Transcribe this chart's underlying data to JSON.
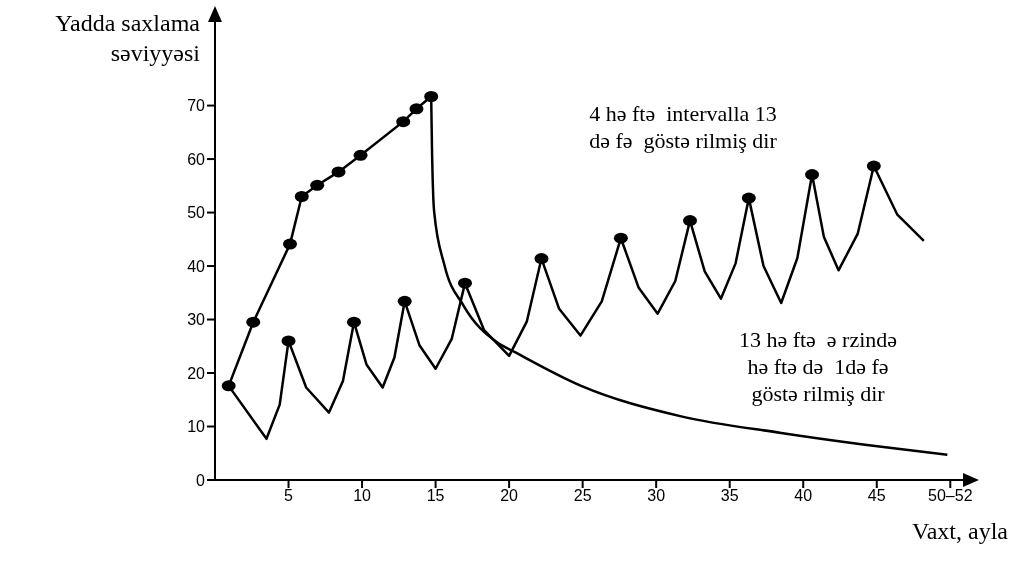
{
  "chart_data": {
    "type": "line",
    "xlabel": "Vaxt, ayla",
    "ylabel": "Yadda saxlama\nsəviyyəsi",
    "xlim": [
      0,
      51
    ],
    "ylim": [
      0,
      86
    ],
    "xticks": [
      5,
      10,
      15,
      20,
      25,
      30,
      35,
      40,
      45,
      {
        "value": 50,
        "label": "50–52"
      }
    ],
    "yticks": [
      0,
      10,
      20,
      30,
      40,
      50,
      60,
      70
    ],
    "annotations": [
      "4 hə ftə  intervalla 13\ndə fə  göstə rilmiş dir",
      "13 hə ftə  ə rzində\nhə ftə də  1də fə\ngöstə rilmiş dir"
    ],
    "series": [
      {
        "type": "line",
        "color": "#000000",
        "marker": "circle",
        "x": [
          0.93,
          2.6,
          5.1,
          5.9,
          6.95,
          8.4,
          9.9,
          12.8,
          13.7,
          14.7
        ],
        "values": [
          17.6,
          29.5,
          44.1,
          53.0,
          55.1,
          57.6,
          60.7,
          67.0,
          69.4,
          71.7
        ]
      },
      {
        "type": "line",
        "color": "#000000",
        "marker": "none",
        "x": [
          14.7,
          14.75,
          14.9,
          15.6,
          16.9,
          19.2,
          20.4,
          24.9,
          31.7,
          38.5,
          44.2,
          49.8
        ],
        "values": [
          71.7,
          62.8,
          50.2,
          40.2,
          32.6,
          25.7,
          23.9,
          17.6,
          11.9,
          8.8,
          6.6,
          4.7
        ]
      },
      {
        "type": "line",
        "color": "#000000",
        "marker": "none",
        "x": [
          0.93,
          3.5,
          4.4,
          5.0,
          6.2,
          7.75,
          8.7,
          9.45,
          10.3,
          11.4,
          12.2,
          12.9,
          13.9,
          15.0,
          16.1,
          17.0,
          18.3,
          20.0,
          21.2,
          22.2,
          23.4,
          24.85,
          26.3,
          27.6,
          28.8,
          30.1,
          31.3,
          32.3,
          33.3,
          34.4,
          35.4,
          36.3,
          37.3,
          38.5,
          39.6,
          40.6,
          41.4,
          42.4,
          43.7,
          44.8,
          46.4,
          48.2
        ],
        "values": [
          17.6,
          7.7,
          14.1,
          26.0,
          17.3,
          12.6,
          18.5,
          29.5,
          21.6,
          17.3,
          22.9,
          33.4,
          25.2,
          20.8,
          26.4,
          36.8,
          28.0,
          23.2,
          29.6,
          41.4,
          32.0,
          27.0,
          33.4,
          45.2,
          36.0,
          31.1,
          37.2,
          48.5,
          39.0,
          33.9,
          40.5,
          52.7,
          40.0,
          33.1,
          41.5,
          57.1,
          45.5,
          39.2,
          46.0,
          58.7,
          49.6,
          44.7
        ]
      },
      {
        "type": "scatter",
        "color": "#000000",
        "marker": "circle",
        "x": [
          5.0,
          9.45,
          12.9,
          17.0,
          22.2,
          27.6,
          32.3,
          36.3,
          40.6,
          44.8
        ],
        "values": [
          26.0,
          29.5,
          33.4,
          36.8,
          41.4,
          45.2,
          48.5,
          52.7,
          57.1,
          58.7
        ]
      }
    ]
  }
}
